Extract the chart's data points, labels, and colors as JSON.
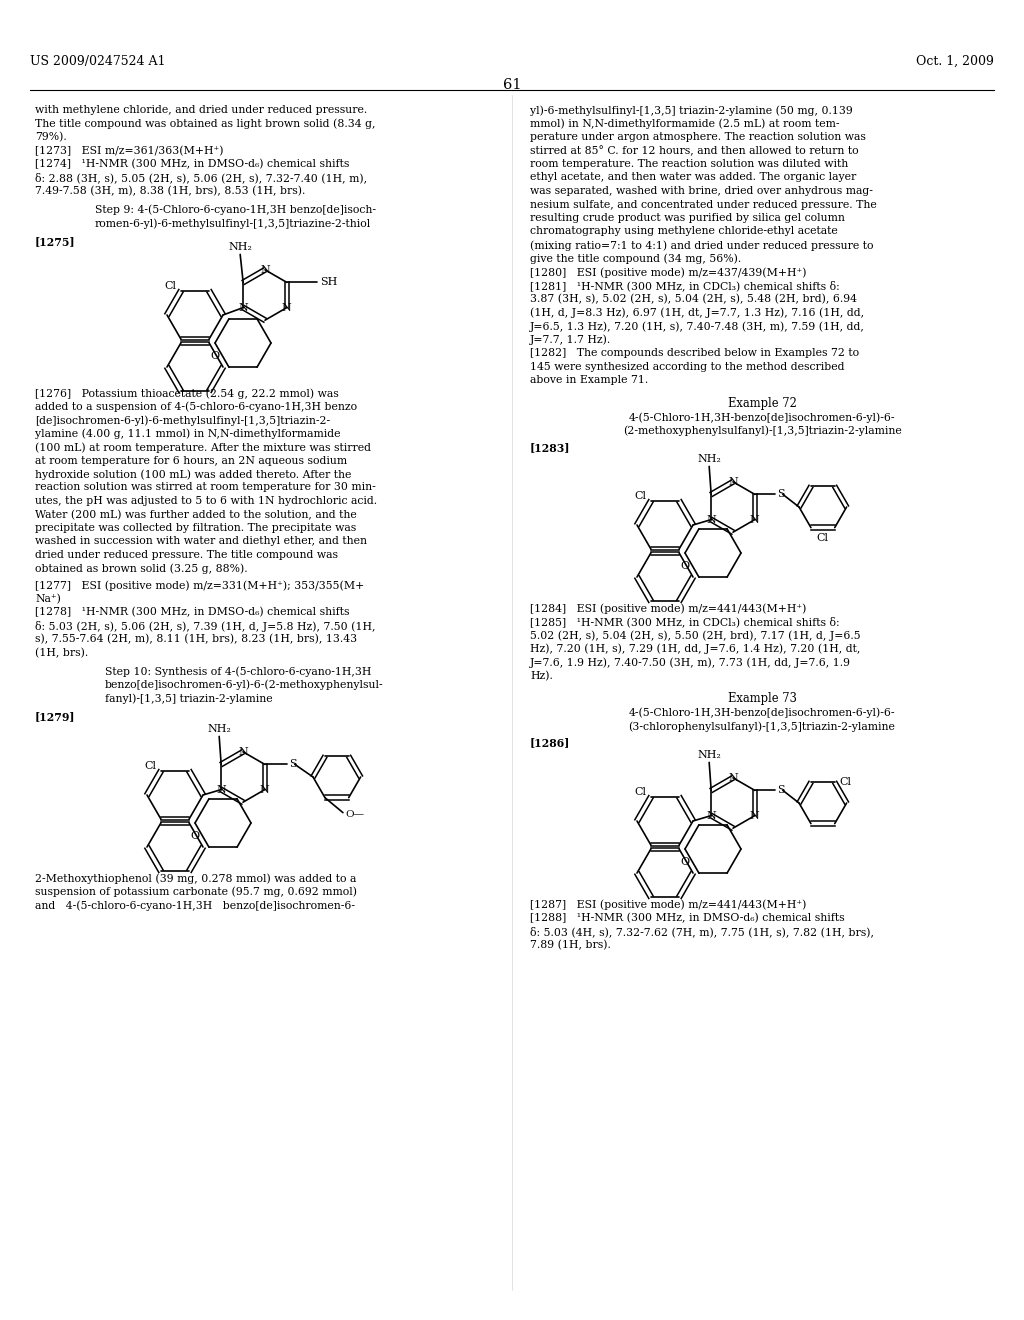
{
  "page_number": "61",
  "header_left": "US 2009/0247524 A1",
  "header_right": "Oct. 1, 2009",
  "background_color": "#ffffff",
  "text_color": "#000000",
  "font_size_body": 7.8,
  "font_size_header": 9.0,
  "font_size_page_num": 10.5,
  "left_top_text": [
    "with methylene chloride, and dried under reduced pressure.",
    "The title compound was obtained as light brown solid (8.34 g,",
    "79%).",
    "[1273]   ESI m/z=361/363(M+H⁺)",
    "[1274]   ¹H-NMR (300 MHz, in DMSO-d₆) chemical shifts",
    "δ: 2.88 (3H, s), 5.05 (2H, s), 5.06 (2H, s), 7.32-7.40 (1H, m),",
    "7.49-7.58 (3H, m), 8.38 (1H, brs), 8.53 (1H, brs)."
  ],
  "step9_line1": "Step 9: 4-(5-Chloro-6-cyano-1H,3H benzo[de]isoch-",
  "step9_line2": "romen-6-yl)-6-methylsulfinyl-[1,3,5]triazine-2-thiol",
  "bracket_1275": "[1275]",
  "left_1276_text": [
    "[1276]   Potassium thioacetate (2.54 g, 22.2 mmol) was",
    "added to a suspension of 4-(5-chloro-6-cyano-1H,3H benzo",
    "[de]isochromen-6-yl)-6-methylsulfinyl-[1,3,5]triazin-2-",
    "ylamine (4.00 g, 11.1 mmol) in N,N-dimethylformamide",
    "(100 mL) at room temperature. After the mixture was stirred",
    "at room temperature for 6 hours, an 2N aqueous sodium",
    "hydroxide solution (100 mL) was added thereto. After the",
    "reaction solution was stirred at room temperature for 30 min-",
    "utes, the pH was adjusted to 5 to 6 with 1N hydrochloric acid.",
    "Water (200 mL) was further added to the solution, and the",
    "precipitate was collected by filtration. The precipitate was",
    "washed in succession with water and diethyl ether, and then",
    "dried under reduced pressure. The title compound was",
    "obtained as brown solid (3.25 g, 88%)."
  ],
  "left_1277_text": [
    "[1277]   ESI (positive mode) m/z=331(M+H⁺); 353/355(M+",
    "Na⁺)",
    "[1278]   ¹H-NMR (300 MHz, in DMSO-d₆) chemical shifts",
    "δ: 5.03 (2H, s), 5.06 (2H, s), 7.39 (1H, d, J=5.8 Hz), 7.50 (1H,",
    "s), 7.55-7.64 (2H, m), 8.11 (1H, brs), 8.23 (1H, brs), 13.43",
    "(1H, brs)."
  ],
  "step10_text": [
    "Step 10: Synthesis of 4-(5-chloro-6-cyano-1H,3H",
    "benzo[de]isochromen-6-yl)-6-(2-methoxyphenylsul-",
    "fanyl)-[1,3,5] triazin-2-ylamine"
  ],
  "bracket_1279": "[1279]",
  "left_bottom_text": [
    "2-Methoxythiophenol (39 mg, 0.278 mmol) was added to a",
    "suspension of potassium carbonate (95.7 mg, 0.692 mmol)",
    "and   4-(5-chloro-6-cyano-1H,3H   benzo[de]isochromen-6-"
  ],
  "right_top_text": [
    "yl)-6-methylsulfinyl-[1,3,5] triazin-2-ylamine (50 mg, 0.139",
    "mmol) in N,N-dimethylformamide (2.5 mL) at room tem-",
    "perature under argon atmosphere. The reaction solution was",
    "stirred at 85° C. for 12 hours, and then allowed to return to",
    "room temperature. The reaction solution was diluted with",
    "ethyl acetate, and then water was added. The organic layer",
    "was separated, washed with brine, dried over anhydrous mag-",
    "nesium sulfate, and concentrated under reduced pressure. The",
    "resulting crude product was purified by silica gel column",
    "chromatography using methylene chloride-ethyl acetate",
    "(mixing ratio=7:1 to 4:1) and dried under reduced pressure to",
    "give the title compound (34 mg, 56%).",
    "[1280]   ESI (positive mode) m/z=437/439(M+H⁺)",
    "[1281]   ¹H-NMR (300 MHz, in CDCl₃) chemical shifts δ:",
    "3.87 (3H, s), 5.02 (2H, s), 5.04 (2H, s), 5.48 (2H, brd), 6.94",
    "(1H, d, J=8.3 Hz), 6.97 (1H, dt, J=7.7, 1.3 Hz), 7.16 (1H, dd,",
    "J=6.5, 1.3 Hz), 7.20 (1H, s), 7.40-7.48 (3H, m), 7.59 (1H, dd,",
    "J=7.7, 1.7 Hz).",
    "[1282]   The compounds described below in Examples 72 to",
    "145 were synthesized according to the method described",
    "above in Example 71."
  ],
  "example72_title": "Example 72",
  "example72_name1": "4-(5-Chloro-1H,3H-benzo[de]isochromen-6-yl)-6-",
  "example72_name2": "(2-methoxyphenylsulfanyl)-[1,3,5]triazin-2-ylamine",
  "bracket_1283": "[1283]",
  "right_1284_text": [
    "[1284]   ESI (positive mode) m/z=441/443(M+H⁺)",
    "[1285]   ¹H-NMR (300 MHz, in CDCl₃) chemical shifts δ:",
    "5.02 (2H, s), 5.04 (2H, s), 5.50 (2H, brd), 7.17 (1H, d, J=6.5",
    "Hz), 7.20 (1H, s), 7.29 (1H, dd, J=7.6, 1.4 Hz), 7.20 (1H, dt,",
    "J=7.6, 1.9 Hz), 7.40-7.50 (3H, m), 7.73 (1H, dd, J=7.6, 1.9",
    "Hz)."
  ],
  "example73_title": "Example 73",
  "example73_name1": "4-(5-Chloro-1H,3H-benzo[de]isochromen-6-yl)-6-",
  "example73_name2": "(3-chlorophenylsulfanyl)-[1,3,5]triazin-2-ylamine",
  "bracket_1286": "[1286]",
  "right_1287_text": [
    "[1287]   ESI (positive mode) m/z=441/443(M+H⁺)",
    "[1288]   ¹H-NMR (300 MHz, in DMSO-d₆) chemical shifts",
    "δ: 5.03 (4H, s), 7.32-7.62 (7H, m), 7.75 (1H, s), 7.82 (1H, brs),",
    "7.89 (1H, brs)."
  ]
}
